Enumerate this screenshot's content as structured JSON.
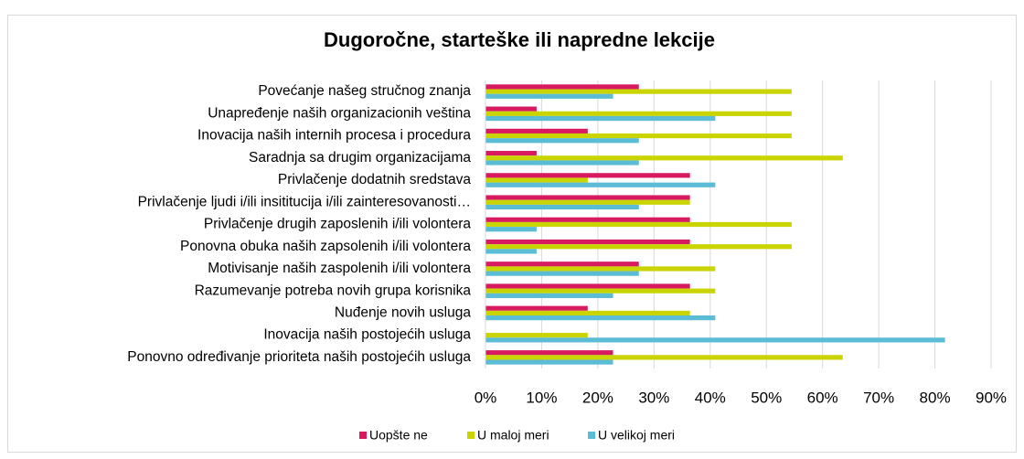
{
  "chart_data": {
    "type": "hbar",
    "title": "Dugoročne, starteške ili napredne lekcije",
    "categories": [
      "Povećanje našeg stručnog znanja",
      "Unapređenje naših organizacionih veština",
      "Inovacija naših internih procesa i procedura",
      "Saradnja sa drugim organizacijama",
      "Privlačenje dodatnih sredstava",
      "Privlačenje ljudi i/ili insititucija i/ili zainteresovanosti…",
      "Privlačenje drugih zaposlenih i/ili volontera",
      "Ponovna obuka naših zapsolenih i/ili volontera",
      "Motivisanje naših zaspolenih i/ili volontera",
      "Razumevanje potreba novih grupa korisnika",
      "Nuđenje novih usluga",
      "Inovacija naših postojećih usluga",
      "Ponovno određivanje prioriteta naših postojećih usluga"
    ],
    "series": [
      {
        "name": "Uopšte ne",
        "color": "#d81b60",
        "values": [
          27.3,
          9.1,
          18.2,
          9.1,
          36.4,
          36.4,
          36.4,
          36.4,
          27.3,
          36.4,
          18.2,
          0,
          22.7
        ]
      },
      {
        "name": "U maloj meri",
        "color": "#c9d400",
        "values": [
          54.5,
          54.5,
          54.5,
          63.6,
          18.2,
          36.4,
          54.5,
          54.5,
          40.9,
          40.9,
          36.4,
          18.2,
          63.6
        ]
      },
      {
        "name": "U velikoj meri",
        "color": "#5bbcd6",
        "values": [
          22.7,
          40.9,
          27.3,
          27.3,
          40.9,
          27.3,
          9.1,
          9.1,
          27.3,
          22.7,
          40.9,
          81.8,
          22.7
        ]
      }
    ],
    "xlim": [
      0,
      90
    ],
    "xticks": [
      {
        "value": 0,
        "label": "0%"
      },
      {
        "value": 10,
        "label": "10%"
      },
      {
        "value": 20,
        "label": "20%"
      },
      {
        "value": 30,
        "label": "30%"
      },
      {
        "value": 40,
        "label": "40%"
      },
      {
        "value": 50,
        "label": "50%"
      },
      {
        "value": 60,
        "label": "60%"
      },
      {
        "value": 70,
        "label": "70%"
      },
      {
        "value": 80,
        "label": "80%"
      },
      {
        "value": 90,
        "label": "90%"
      }
    ],
    "grid": true,
    "legend": "bottom"
  }
}
